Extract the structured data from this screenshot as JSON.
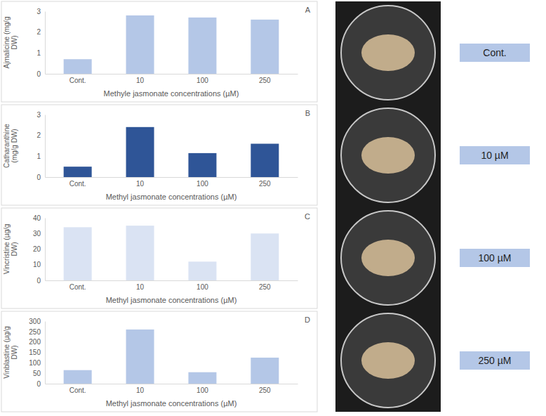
{
  "chart_data": [
    {
      "type": "bar",
      "title": "A",
      "y_label": "Ajmalicine (mg/g DW)",
      "x_label": "Methyle jasmonate concentrations (µM)",
      "categories": [
        "Cont.",
        "10",
        "100",
        "250"
      ],
      "values": [
        0.7,
        2.8,
        2.7,
        2.6
      ],
      "color": "#b4c7e7",
      "ylim": [
        0,
        3
      ],
      "yticks": [
        0,
        1,
        2,
        3
      ],
      "grid": false
    },
    {
      "type": "bar",
      "title": "B",
      "y_label": "Catharanthine (mg/g DW)",
      "x_label": "Methyl jasmonate concentrations (µM)",
      "categories": [
        "Cont.",
        "10",
        "100",
        "250"
      ],
      "values": [
        0.5,
        2.4,
        1.15,
        1.6
      ],
      "color": "#2f5597",
      "ylim": [
        0,
        3
      ],
      "yticks": [
        0,
        1,
        2,
        3
      ],
      "grid": false
    },
    {
      "type": "bar",
      "title": "C",
      "y_label": "Vincristine (µg/g DW)",
      "x_label": "Methyl jasmonate concentrations (µM)",
      "categories": [
        "Cont.",
        "10",
        "100",
        "250"
      ],
      "values": [
        34,
        35,
        12,
        30
      ],
      "color": "#dae3f3",
      "ylim": [
        0,
        40
      ],
      "yticks": [
        0,
        10,
        20,
        30,
        40
      ],
      "grid": false
    },
    {
      "type": "bar",
      "title": "D",
      "y_label": "Vinblastine (µg/g DW)",
      "x_label": "Methyl jasmonate concentrations (µM)",
      "categories": [
        "Cont.",
        "10",
        "100",
        "250"
      ],
      "values": [
        65,
        260,
        55,
        125
      ],
      "color": "#b4c7e7",
      "ylim": [
        0,
        300
      ],
      "yticks": [
        0,
        50,
        100,
        150,
        200,
        250,
        300
      ],
      "grid": false
    }
  ],
  "panel_labels": [
    "Cont.",
    "10 µM",
    "100 µM",
    "250 µM"
  ]
}
